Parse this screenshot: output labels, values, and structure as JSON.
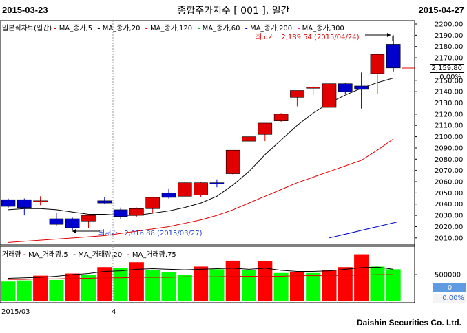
{
  "header": {
    "date_start": "2015-03-23",
    "title": "종합주가지수 [ 001 ], 일간",
    "date_end": "2015-04-27"
  },
  "legend": {
    "chart_name": "일본식차트(일간)",
    "items": [
      {
        "label": "MA_종가,5",
        "color": "#e00000"
      },
      {
        "label": "MA_종가,20",
        "color": "#000000"
      },
      {
        "label": "MA_종가,120",
        "color": "#e00000"
      },
      {
        "label": "MA_종가,60",
        "color": "#00cc00"
      },
      {
        "label": "MA_종가,200",
        "color": "#0000cc"
      },
      {
        "label": "MA_종가,300",
        "color": "#e000e0"
      }
    ]
  },
  "volume_legend": {
    "name": "거래량",
    "items": [
      {
        "label": "MA_거래량,5",
        "color": "#e00000"
      },
      {
        "label": "MA_거래량,20",
        "color": "#000000"
      },
      {
        "label": "MA_거래량,75",
        "color": "#e00000"
      }
    ]
  },
  "annotations": {
    "high_label": "최고가 : 2,189.54 (2015/04/24)",
    "low_label": "최저가 : 2,016.88 (2015/03/27)"
  },
  "price_panel": {
    "current_price": "2,159.80",
    "current_change": "0.00%"
  },
  "volume_panel": {
    "current_volume": "0",
    "current_change": "0.00%"
  },
  "x_axis": {
    "labels": [
      "2015/03",
      "4"
    ]
  },
  "footer": "Daishin Securities Co. Ltd.",
  "chart_data": [
    {
      "type": "candlestick",
      "title": "종합주가지수 [ 001 ], 일간",
      "ylim": [
        2005,
        2200
      ],
      "yticks": [
        2010,
        2020,
        2030,
        2040,
        2050,
        2060,
        2070,
        2080,
        2090,
        2100,
        2110,
        2120,
        2130,
        2140,
        2150,
        2160,
        2170,
        2180,
        2190,
        2200
      ],
      "candles": [
        {
          "o": 2044,
          "h": 2045,
          "l": 2037,
          "c": 2038
        },
        {
          "o": 2044,
          "h": 2045,
          "l": 2030,
          "c": 2037
        },
        {
          "o": 2042,
          "h": 2047,
          "l": 2039,
          "c": 2043
        },
        {
          "o": 2027,
          "h": 2032,
          "l": 2021,
          "c": 2022
        },
        {
          "o": 2027,
          "h": 2028,
          "l": 2017,
          "c": 2019
        },
        {
          "o": 2025,
          "h": 2031,
          "l": 2019,
          "c": 2030
        },
        {
          "o": 2043,
          "h": 2046,
          "l": 2040,
          "c": 2041
        },
        {
          "o": 2035,
          "h": 2037,
          "l": 2027,
          "c": 2029
        },
        {
          "o": 2030,
          "h": 2037,
          "l": 2029,
          "c": 2036
        },
        {
          "o": 2036,
          "h": 2046,
          "l": 2032,
          "c": 2046
        },
        {
          "o": 2050,
          "h": 2054,
          "l": 2045,
          "c": 2046
        },
        {
          "o": 2047,
          "h": 2060,
          "l": 2046,
          "c": 2059
        },
        {
          "o": 2048,
          "h": 2060,
          "l": 2046,
          "c": 2059
        },
        {
          "o": 2059,
          "h": 2062,
          "l": 2055,
          "c": 2058
        },
        {
          "o": 2067,
          "h": 2088,
          "l": 2066,
          "c": 2088
        },
        {
          "o": 2096,
          "h": 2101,
          "l": 2089,
          "c": 2100
        },
        {
          "o": 2102,
          "h": 2112,
          "l": 2096,
          "c": 2112
        },
        {
          "o": 2114,
          "h": 2121,
          "l": 2113,
          "c": 2120
        },
        {
          "o": 2135,
          "h": 2141,
          "l": 2127,
          "c": 2141
        },
        {
          "o": 2143,
          "h": 2145,
          "l": 2137,
          "c": 2144
        },
        {
          "o": 2126,
          "h": 2147,
          "l": 2126,
          "c": 2147
        },
        {
          "o": 2147,
          "h": 2148,
          "l": 2138,
          "c": 2140
        },
        {
          "o": 2145,
          "h": 2157,
          "l": 2125,
          "c": 2142
        },
        {
          "o": 2156,
          "h": 2174,
          "l": 2138,
          "c": 2173
        },
        {
          "o": 2182,
          "h": 2190,
          "l": 2158,
          "c": 2161
        }
      ],
      "ma": [
        {
          "name": "MA_종가,20",
          "color": "#000000",
          "values": [
            2035,
            2036,
            2036,
            2035,
            2033,
            2031,
            2031,
            2030,
            2030,
            2032,
            2034,
            2037,
            2041,
            2047,
            2057,
            2069,
            2084,
            2097,
            2110,
            2121,
            2130,
            2137,
            2143,
            2148,
            2152
          ]
        },
        {
          "name": "MA_종가,120",
          "color": "#e00000",
          "values": [
            2006,
            2007,
            2008,
            2009,
            2010,
            2011,
            2012,
            2014,
            2016,
            2018,
            2020,
            2023,
            2026,
            2030,
            2035,
            2041,
            2047,
            2053,
            2059,
            2064,
            2069,
            2074,
            2079,
            2088,
            2098
          ]
        }
      ]
    },
    {
      "type": "bar",
      "title": "거래량",
      "ylim": [
        0,
        900000
      ],
      "yticks": [
        500000
      ],
      "values": [
        370000,
        390000,
        480000,
        400000,
        520000,
        500000,
        640000,
        620000,
        730000,
        580000,
        540000,
        490000,
        650000,
        600000,
        760000,
        590000,
        750000,
        530000,
        540000,
        530000,
        580000,
        640000,
        880000,
        650000,
        600000
      ],
      "colors": [
        "g",
        "g",
        "r",
        "g",
        "r",
        "g",
        "r",
        "g",
        "r",
        "g",
        "g",
        "g",
        "r",
        "g",
        "r",
        "g",
        "r",
        "g",
        "r",
        "g",
        "r",
        "r",
        "r",
        "g",
        "g"
      ],
      "ma": [
        {
          "name": "MA_거래량,20",
          "color": "#000000",
          "values": [
            430000,
            440000,
            450000,
            470000,
            500000,
            520000,
            560000,
            570000,
            600000,
            610000,
            600000,
            590000,
            600000,
            610000,
            620000,
            600000,
            620000,
            580000,
            560000,
            560000,
            570000,
            600000,
            630000,
            640000,
            600000
          ]
        },
        {
          "name": "MA_거래량,75",
          "color": "#e00000",
          "values": [
            410000,
            410000,
            420000,
            420000,
            430000,
            430000,
            440000,
            440000,
            450000,
            450000,
            450000,
            460000,
            460000,
            460000,
            470000,
            470000,
            470000,
            470000,
            480000,
            480000,
            480000,
            490000,
            490000,
            500000,
            500000
          ]
        }
      ]
    }
  ]
}
